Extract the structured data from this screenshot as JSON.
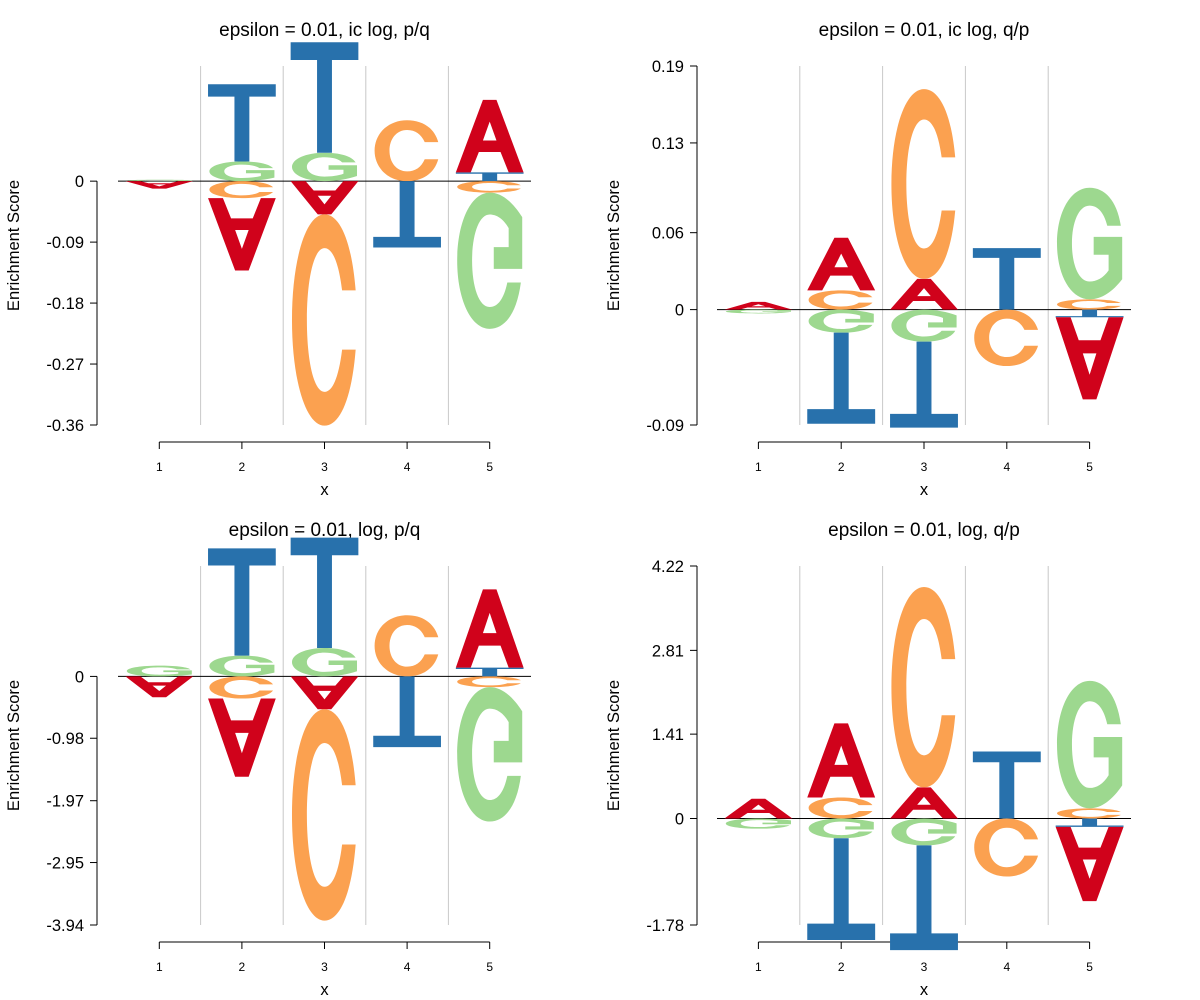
{
  "colors": {
    "A": "#d0021b",
    "C": "#fba150",
    "G": "#9dd88f",
    "T": "#2871ac"
  },
  "chart_data": [
    {
      "type": "sequence-logo",
      "title": "epsilon = 0.01, ic log, p/q",
      "xlabel": "x",
      "ylabel": "Enrichment Score",
      "x_ticks": [
        "1",
        "2",
        "3",
        "4",
        "5"
      ],
      "y_ticks": [
        "0",
        "-0.09",
        "-0.18",
        "-0.27",
        "-0.36"
      ],
      "y_tick_values": [
        0,
        -0.09,
        -0.18,
        -0.27,
        -0.36
      ],
      "ylim": [
        -0.36,
        0.17
      ],
      "grid": true,
      "positions": [
        {
          "x": 1,
          "letters": [
            {
              "letter": "G",
              "value": 0.002
            },
            {
              "letter": "A",
              "value": -0.011
            }
          ]
        },
        {
          "x": 2,
          "letters": [
            {
              "letter": "G",
              "value": 0.029
            },
            {
              "letter": "T",
              "value": 0.114
            },
            {
              "letter": "C",
              "value": -0.025
            },
            {
              "letter": "A",
              "value": -0.107
            }
          ]
        },
        {
          "x": 3,
          "letters": [
            {
              "letter": "G",
              "value": 0.042
            },
            {
              "letter": "T",
              "value": 0.163
            },
            {
              "letter": "A",
              "value": -0.049
            },
            {
              "letter": "C",
              "value": -0.312
            }
          ]
        },
        {
          "x": 4,
          "letters": [
            {
              "letter": "C",
              "value": 0.09
            },
            {
              "letter": "T",
              "value": -0.098
            }
          ]
        },
        {
          "x": 5,
          "letters": [
            {
              "letter": "T",
              "value": 0.013
            },
            {
              "letter": "A",
              "value": 0.107
            },
            {
              "letter": "C",
              "value": -0.017
            },
            {
              "letter": "G",
              "value": -0.201
            }
          ]
        }
      ]
    },
    {
      "type": "sequence-logo",
      "title": "epsilon = 0.01, ic log, q/p",
      "xlabel": "x",
      "ylabel": "Enrichment Score",
      "x_ticks": [
        "1",
        "2",
        "3",
        "4",
        "5"
      ],
      "y_ticks": [
        "0.19",
        "0.13",
        "0.06",
        "0",
        "-0.09"
      ],
      "y_tick_values": [
        0.19,
        0.13,
        0.06,
        0,
        -0.09
      ],
      "ylim": [
        -0.09,
        0.19
      ],
      "grid": true,
      "positions": [
        {
          "x": 1,
          "letters": [
            {
              "letter": "A",
              "value": 0.006
            },
            {
              "letter": "G",
              "value": -0.003
            }
          ]
        },
        {
          "x": 2,
          "letters": [
            {
              "letter": "C",
              "value": 0.015
            },
            {
              "letter": "A",
              "value": 0.041
            },
            {
              "letter": "G",
              "value": -0.018
            },
            {
              "letter": "T",
              "value": -0.071
            }
          ]
        },
        {
          "x": 3,
          "letters": [
            {
              "letter": "A",
              "value": 0.024
            },
            {
              "letter": "C",
              "value": 0.148
            },
            {
              "letter": "G",
              "value": -0.025
            },
            {
              "letter": "T",
              "value": -0.067
            }
          ]
        },
        {
          "x": 4,
          "letters": [
            {
              "letter": "T",
              "value": 0.048
            },
            {
              "letter": "C",
              "value": -0.044
            }
          ]
        },
        {
          "x": 5,
          "letters": [
            {
              "letter": "C",
              "value": 0.008
            },
            {
              "letter": "G",
              "value": 0.087
            },
            {
              "letter": "T",
              "value": -0.006
            },
            {
              "letter": "A",
              "value": -0.064
            }
          ]
        }
      ]
    },
    {
      "type": "sequence-logo",
      "title": "epsilon = 0.01, log, p/q",
      "xlabel": "x",
      "ylabel": "Enrichment Score",
      "x_ticks": [
        "1",
        "2",
        "3",
        "4",
        "5"
      ],
      "y_ticks": [
        "0",
        "-0.98",
        "-1.97",
        "-2.95",
        "-3.94"
      ],
      "y_tick_values": [
        0,
        -0.98,
        -1.97,
        -2.95,
        -3.94
      ],
      "ylim": [
        -3.94,
        1.75
      ],
      "grid": true,
      "positions": [
        {
          "x": 1,
          "letters": [
            {
              "letter": "G",
              "value": 0.17
            },
            {
              "letter": "A",
              "value": -0.33
            }
          ]
        },
        {
          "x": 2,
          "letters": [
            {
              "letter": "G",
              "value": 0.33
            },
            {
              "letter": "T",
              "value": 1.7
            },
            {
              "letter": "C",
              "value": -0.35
            },
            {
              "letter": "A",
              "value": -1.24
            }
          ]
        },
        {
          "x": 3,
          "letters": [
            {
              "letter": "G",
              "value": 0.45
            },
            {
              "letter": "T",
              "value": 1.75
            },
            {
              "letter": "A",
              "value": -0.52
            },
            {
              "letter": "C",
              "value": -3.35
            }
          ]
        },
        {
          "x": 4,
          "letters": [
            {
              "letter": "C",
              "value": 0.97
            },
            {
              "letter": "T",
              "value": -1.12
            }
          ]
        },
        {
          "x": 5,
          "letters": [
            {
              "letter": "T",
              "value": 0.14
            },
            {
              "letter": "A",
              "value": 1.24
            },
            {
              "letter": "C",
              "value": -0.17
            },
            {
              "letter": "G",
              "value": -2.13
            }
          ]
        }
      ]
    },
    {
      "type": "sequence-logo",
      "title": "epsilon = 0.01, log, q/p",
      "xlabel": "x",
      "ylabel": "Enrichment Score",
      "x_ticks": [
        "1",
        "2",
        "3",
        "4",
        "5"
      ],
      "y_ticks": [
        "4.22",
        "2.81",
        "1.41",
        "0",
        "-1.78"
      ],
      "y_tick_values": [
        4.22,
        2.81,
        1.41,
        0,
        -1.78
      ],
      "ylim": [
        -1.78,
        4.22
      ],
      "grid": true,
      "positions": [
        {
          "x": 1,
          "letters": [
            {
              "letter": "A",
              "value": 0.33
            },
            {
              "letter": "G",
              "value": -0.17
            }
          ]
        },
        {
          "x": 2,
          "letters": [
            {
              "letter": "C",
              "value": 0.35
            },
            {
              "letter": "A",
              "value": 1.24
            },
            {
              "letter": "G",
              "value": -0.33
            },
            {
              "letter": "T",
              "value": -1.7
            }
          ]
        },
        {
          "x": 3,
          "letters": [
            {
              "letter": "A",
              "value": 0.52
            },
            {
              "letter": "C",
              "value": 3.35
            },
            {
              "letter": "G",
              "value": -0.45
            },
            {
              "letter": "T",
              "value": -1.75
            }
          ]
        },
        {
          "x": 4,
          "letters": [
            {
              "letter": "T",
              "value": 1.12
            },
            {
              "letter": "C",
              "value": -0.97
            }
          ]
        },
        {
          "x": 5,
          "letters": [
            {
              "letter": "C",
              "value": 0.17
            },
            {
              "letter": "G",
              "value": 2.13
            },
            {
              "letter": "T",
              "value": -0.14
            },
            {
              "letter": "A",
              "value": -1.24
            }
          ]
        }
      ]
    }
  ]
}
